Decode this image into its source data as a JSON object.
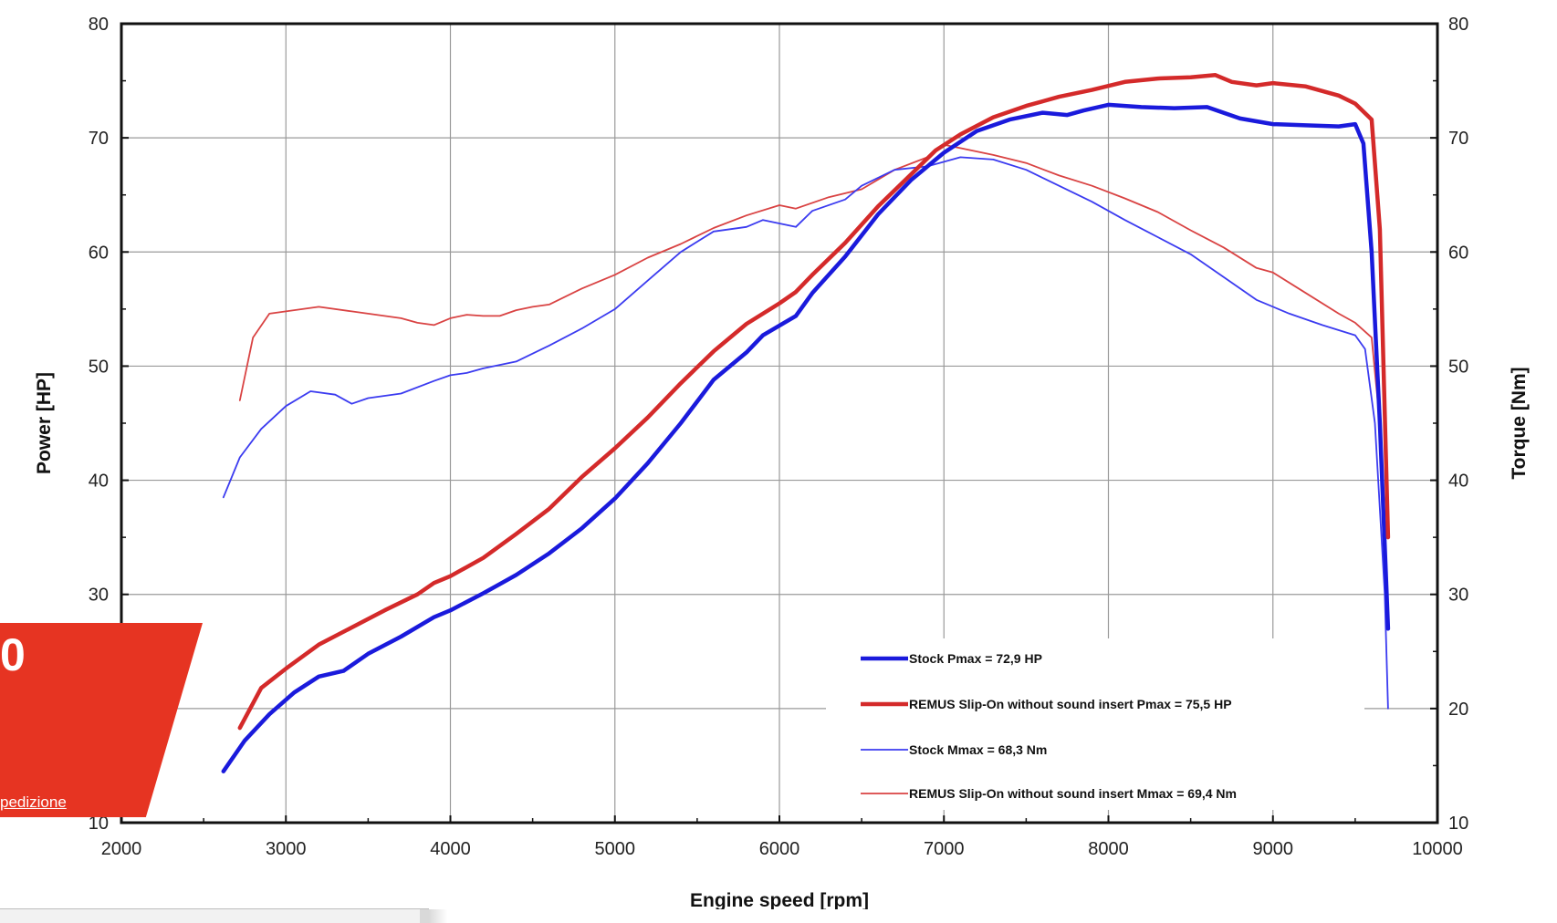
{
  "chart_data": {
    "type": "line",
    "xlabel": "Engine speed [rpm]",
    "ylabel_left": "Power [HP]",
    "ylabel_right": "Torque [Nm]",
    "xlim": [
      2000,
      10000
    ],
    "ylim_left": [
      10,
      80
    ],
    "ylim_right": [
      10,
      80
    ],
    "x_ticks": [
      "2000",
      "3000",
      "4000",
      "5000",
      "6000",
      "7000",
      "8000",
      "9000",
      "10000"
    ],
    "y_ticks_left": [
      "10",
      "20",
      "30",
      "40",
      "50",
      "60",
      "70",
      "80"
    ],
    "y_ticks_right": [
      "10",
      "20",
      "30",
      "40",
      "50",
      "60",
      "70",
      "80"
    ],
    "grid": true,
    "legend_position": "bottom-right",
    "series": [
      {
        "name": "Stock Pmax = 72,9 HP",
        "color": "#1a1adc",
        "style": "thick",
        "x": [
          2620,
          2750,
          2900,
          3050,
          3200,
          3350,
          3500,
          3700,
          3900,
          4000,
          4200,
          4400,
          4600,
          4800,
          5000,
          5200,
          5400,
          5600,
          5800,
          5900,
          6100,
          6200,
          6400,
          6600,
          6800,
          7000,
          7200,
          7400,
          7600,
          7750,
          7850,
          8000,
          8200,
          8400,
          8600,
          8800,
          9000,
          9200,
          9400,
          9500,
          9550,
          9600,
          9650,
          9700
        ],
        "y": [
          14.5,
          17.2,
          19.5,
          21.4,
          22.8,
          23.3,
          24.8,
          26.3,
          28.0,
          28.6,
          30.1,
          31.7,
          33.6,
          35.8,
          38.4,
          41.5,
          45.0,
          48.8,
          51.2,
          52.7,
          54.4,
          56.4,
          59.6,
          63.3,
          66.3,
          68.7,
          70.6,
          71.6,
          72.2,
          72.0,
          72.4,
          72.9,
          72.7,
          72.6,
          72.7,
          71.7,
          71.2,
          71.1,
          71.0,
          71.2,
          69.5,
          60.0,
          45.0,
          27.0
        ]
      },
      {
        "name": "REMUS Slip-On without sound insert Pmax =  75,5 HP",
        "color": "#d42a2a",
        "style": "thick",
        "x": [
          2720,
          2850,
          3000,
          3200,
          3400,
          3600,
          3800,
          3900,
          4000,
          4200,
          4400,
          4600,
          4800,
          5000,
          5200,
          5400,
          5600,
          5800,
          6000,
          6100,
          6200,
          6400,
          6600,
          6800,
          6950,
          7100,
          7300,
          7500,
          7700,
          7900,
          8100,
          8300,
          8500,
          8650,
          8750,
          8900,
          9000,
          9200,
          9400,
          9500,
          9600,
          9650,
          9700
        ],
        "y": [
          18.3,
          21.8,
          23.5,
          25.6,
          27.1,
          28.6,
          30.0,
          31.0,
          31.6,
          33.2,
          35.3,
          37.5,
          40.3,
          42.8,
          45.5,
          48.5,
          51.3,
          53.7,
          55.5,
          56.5,
          58.0,
          60.8,
          64.0,
          66.8,
          68.9,
          70.3,
          71.8,
          72.8,
          73.6,
          74.2,
          74.9,
          75.2,
          75.3,
          75.5,
          74.9,
          74.6,
          74.8,
          74.5,
          73.7,
          73.0,
          71.6,
          62.0,
          35.0
        ]
      },
      {
        "name": "Stock Mmax = 68,3 Nm",
        "color": "#3b3bf0",
        "style": "thin",
        "x": [
          2620,
          2720,
          2850,
          3000,
          3150,
          3300,
          3400,
          3500,
          3700,
          3900,
          4000,
          4100,
          4200,
          4400,
          4600,
          4800,
          5000,
          5200,
          5400,
          5600,
          5800,
          5900,
          6100,
          6200,
          6400,
          6500,
          6700,
          6900,
          7000,
          7100,
          7300,
          7500,
          7700,
          7900,
          8100,
          8300,
          8500,
          8700,
          8900,
          9100,
          9300,
          9500,
          9560,
          9620,
          9680,
          9700
        ],
        "y": [
          38.5,
          42.0,
          44.5,
          46.5,
          47.8,
          47.5,
          46.7,
          47.2,
          47.6,
          48.7,
          49.2,
          49.4,
          49.8,
          50.4,
          51.8,
          53.3,
          55.0,
          57.5,
          60.0,
          61.8,
          62.2,
          62.8,
          62.2,
          63.6,
          64.6,
          65.8,
          67.2,
          67.5,
          67.9,
          68.3,
          68.1,
          67.2,
          65.8,
          64.4,
          62.8,
          61.3,
          59.8,
          57.8,
          55.8,
          54.6,
          53.6,
          52.7,
          51.5,
          45.0,
          30.0,
          20.0
        ]
      },
      {
        "name": "REMUS Slip-On without sound insert Mmax = 69,4 Nm",
        "color": "#d94343",
        "style": "thin",
        "x": [
          2720,
          2800,
          2900,
          3000,
          3100,
          3200,
          3400,
          3600,
          3700,
          3800,
          3900,
          4000,
          4100,
          4200,
          4300,
          4400,
          4500,
          4600,
          4800,
          5000,
          5200,
          5400,
          5600,
          5800,
          6000,
          6100,
          6300,
          6500,
          6700,
          6900,
          7000,
          7100,
          7300,
          7500,
          7700,
          7900,
          8100,
          8300,
          8500,
          8700,
          8900,
          9000,
          9200,
          9400,
          9500,
          9600,
          9650,
          9700
        ],
        "y": [
          47.0,
          52.5,
          54.6,
          54.8,
          55.0,
          55.2,
          54.8,
          54.4,
          54.2,
          53.8,
          53.6,
          54.2,
          54.5,
          54.4,
          54.4,
          54.9,
          55.2,
          55.4,
          56.8,
          58.0,
          59.5,
          60.7,
          62.1,
          63.2,
          64.1,
          63.8,
          64.8,
          65.5,
          67.2,
          68.3,
          69.4,
          69.1,
          68.5,
          67.8,
          66.7,
          65.8,
          64.7,
          63.5,
          61.9,
          60.4,
          58.6,
          58.2,
          56.4,
          54.6,
          53.8,
          52.5,
          45.0,
          27.0
        ]
      }
    ]
  },
  "overlay": {
    "big_text": "0",
    "link_text": "pedizione"
  }
}
